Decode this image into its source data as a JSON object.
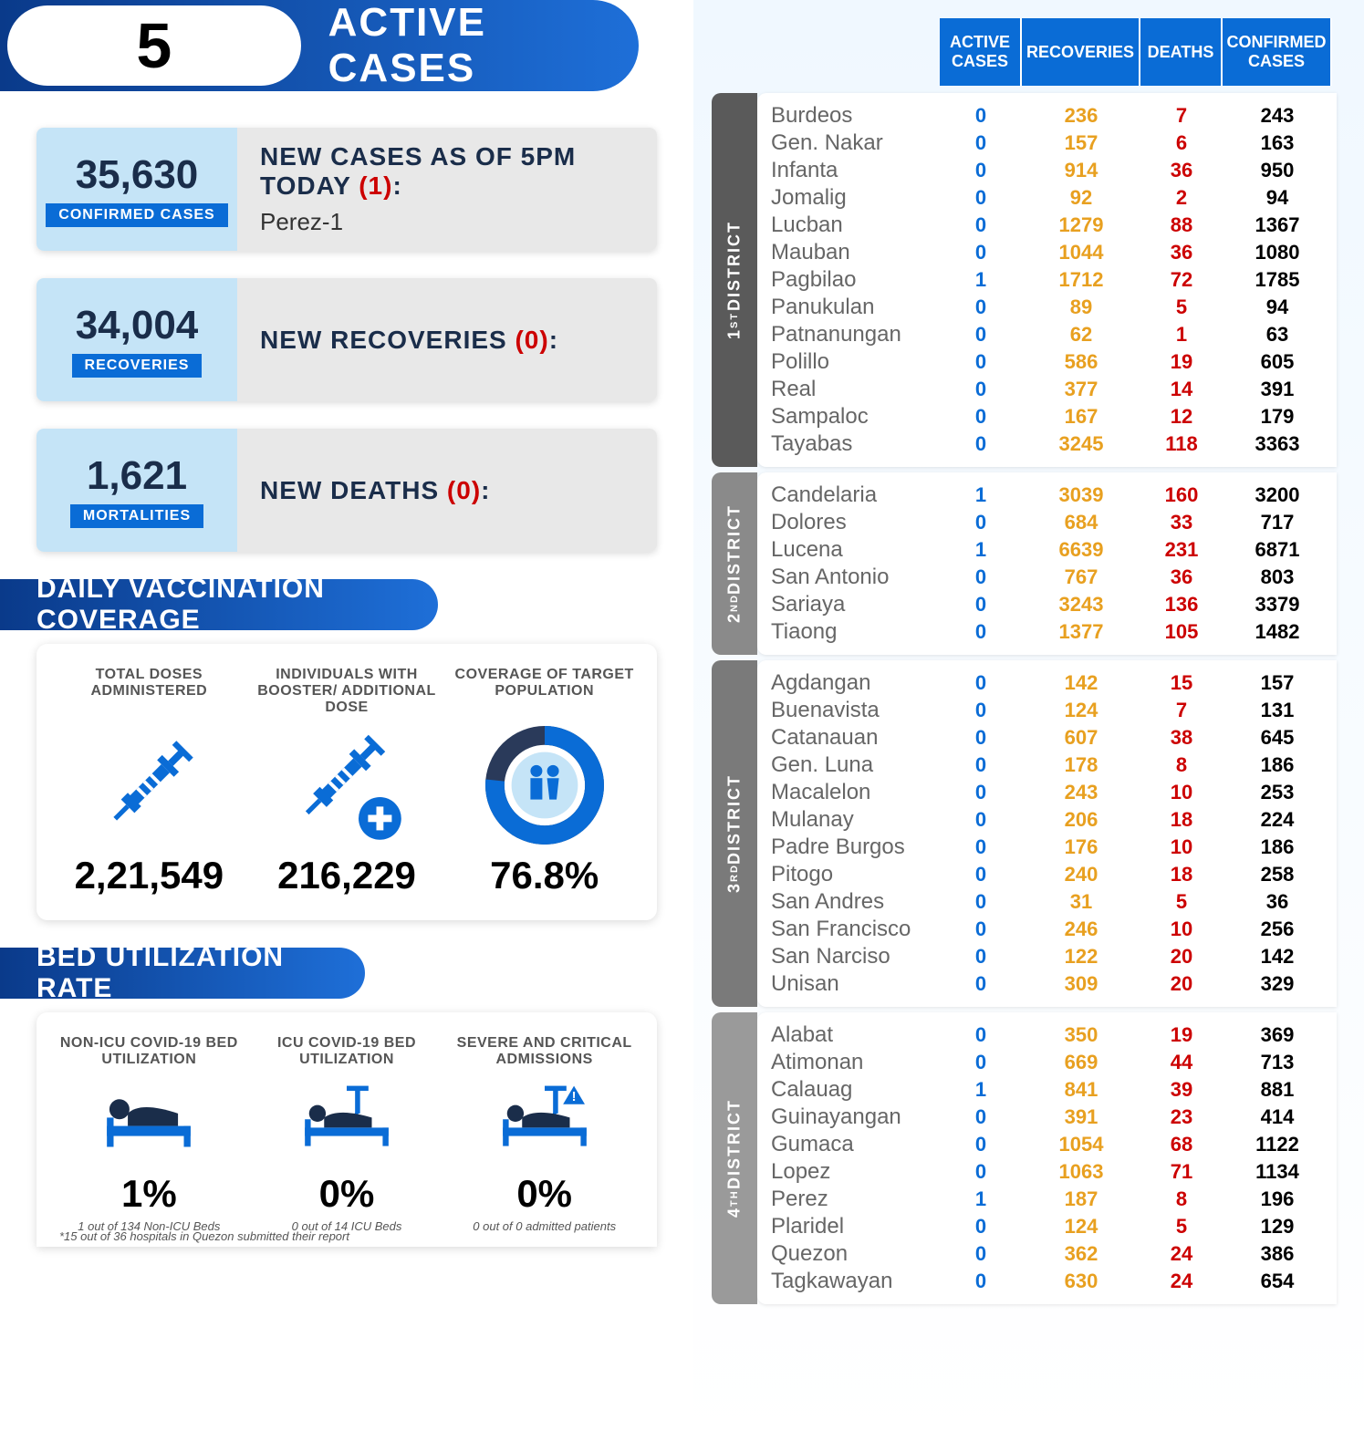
{
  "header": {
    "active_count": "5",
    "title": "ACTIVE CASES"
  },
  "stats": [
    {
      "number": "35,630",
      "label": "CONFIRMED CASES",
      "title": "NEW CASES AS OF 5PM TODAY",
      "count": "(1)",
      "sub": "Perez-1"
    },
    {
      "number": "34,004",
      "label": "RECOVERIES",
      "title": "NEW RECOVERIES",
      "count": "(0)",
      "sub": ""
    },
    {
      "number": "1,621",
      "label": "MORTALITIES",
      "title": "NEW DEATHS",
      "count": "(0)",
      "sub": ""
    }
  ],
  "vax": {
    "section_title": "DAILY VACCINATION COVERAGE",
    "items": [
      {
        "label": "TOTAL DOSES ADMINISTERED",
        "value": "2,21,549"
      },
      {
        "label": "INDIVIDUALS WITH BOOSTER/ ADDITIONAL DOSE",
        "value": "216,229"
      },
      {
        "label": "COVERAGE OF TARGET POPULATION",
        "value": "76.8%"
      }
    ],
    "coverage_percent": 76.8
  },
  "bed": {
    "section_title": "BED UTILIZATION RATE",
    "items": [
      {
        "label": "NON-ICU COVID-19 BED UTILIZATION",
        "value": "1%",
        "sub": "1 out of 134 Non-ICU Beds"
      },
      {
        "label": "ICU COVID-19 BED UTILIZATION",
        "value": "0%",
        "sub": "0 out of 14 ICU Beds"
      },
      {
        "label": "SEVERE AND CRITICAL ADMISSIONS",
        "value": "0%",
        "sub": "0 out of 0 admitted patients"
      }
    ],
    "footnote": "*15 out of 36 hospitals in Quezon submitted their report"
  },
  "table": {
    "headers": [
      "ACTIVE CASES",
      "RECOVERIES",
      "DEATHS",
      "CONFIRMED CASES"
    ],
    "districts": [
      {
        "label": "1ST DISTRICT",
        "class": "dist-1",
        "rows": [
          [
            "Burdeos",
            "0",
            "236",
            "7",
            "243"
          ],
          [
            "Gen. Nakar",
            "0",
            "157",
            "6",
            "163"
          ],
          [
            "Infanta",
            "0",
            "914",
            "36",
            "950"
          ],
          [
            "Jomalig",
            "0",
            "92",
            "2",
            "94"
          ],
          [
            "Lucban",
            "0",
            "1279",
            "88",
            "1367"
          ],
          [
            "Mauban",
            "0",
            "1044",
            "36",
            "1080"
          ],
          [
            "Pagbilao",
            "1",
            "1712",
            "72",
            "1785"
          ],
          [
            "Panukulan",
            "0",
            "89",
            "5",
            "94"
          ],
          [
            "Patnanungan",
            "0",
            "62",
            "1",
            "63"
          ],
          [
            "Polillo",
            "0",
            "586",
            "19",
            "605"
          ],
          [
            "Real",
            "0",
            "377",
            "14",
            "391"
          ],
          [
            "Sampaloc",
            "0",
            "167",
            "12",
            "179"
          ],
          [
            "Tayabas",
            "0",
            "3245",
            "118",
            "3363"
          ]
        ]
      },
      {
        "label": "2ND DISTRICT",
        "class": "dist-2",
        "rows": [
          [
            "Candelaria",
            "1",
            "3039",
            "160",
            "3200"
          ],
          [
            "Dolores",
            "0",
            "684",
            "33",
            "717"
          ],
          [
            "Lucena",
            "1",
            "6639",
            "231",
            "6871"
          ],
          [
            "San Antonio",
            "0",
            "767",
            "36",
            "803"
          ],
          [
            "Sariaya",
            "0",
            "3243",
            "136",
            "3379"
          ],
          [
            "Tiaong",
            "0",
            "1377",
            "105",
            "1482"
          ]
        ]
      },
      {
        "label": "3RD DISTRICT",
        "class": "dist-3",
        "rows": [
          [
            "Agdangan",
            "0",
            "142",
            "15",
            "157"
          ],
          [
            "Buenavista",
            "0",
            "124",
            "7",
            "131"
          ],
          [
            "Catanauan",
            "0",
            "607",
            "38",
            "645"
          ],
          [
            "Gen. Luna",
            "0",
            "178",
            "8",
            "186"
          ],
          [
            "Macalelon",
            "0",
            "243",
            "10",
            "253"
          ],
          [
            "Mulanay",
            "0",
            "206",
            "18",
            "224"
          ],
          [
            "Padre Burgos",
            "0",
            "176",
            "10",
            "186"
          ],
          [
            "Pitogo",
            "0",
            "240",
            "18",
            "258"
          ],
          [
            "San Andres",
            "0",
            "31",
            "5",
            "36"
          ],
          [
            "San Francisco",
            "0",
            "246",
            "10",
            "256"
          ],
          [
            "San Narciso",
            "0",
            "122",
            "20",
            "142"
          ],
          [
            "Unisan",
            "0",
            "309",
            "20",
            "329"
          ]
        ]
      },
      {
        "label": "4TH DISTRICT",
        "class": "dist-4",
        "rows": [
          [
            "Alabat",
            "0",
            "350",
            "19",
            "369"
          ],
          [
            "Atimonan",
            "0",
            "669",
            "44",
            "713"
          ],
          [
            "Calauag",
            "1",
            "841",
            "39",
            "881"
          ],
          [
            "Guinayangan",
            "0",
            "391",
            "23",
            "414"
          ],
          [
            "Gumaca",
            "0",
            "1054",
            "68",
            "1122"
          ],
          [
            "Lopez",
            "0",
            "1063",
            "71",
            "1134"
          ],
          [
            "Perez",
            "1",
            "187",
            "8",
            "196"
          ],
          [
            "Plaridel",
            "0",
            "124",
            "5",
            "129"
          ],
          [
            "Quezon",
            "0",
            "362",
            "24",
            "386"
          ],
          [
            "Tagkawayan",
            "0",
            "630",
            "24",
            "654"
          ]
        ]
      }
    ]
  },
  "colors": {
    "primary_blue": "#0a6cd6",
    "dark_blue": "#0a3a8a",
    "light_blue": "#c5e4f7",
    "orange": "#e8a020",
    "red": "#c00",
    "gray": "#5a5a5a"
  }
}
